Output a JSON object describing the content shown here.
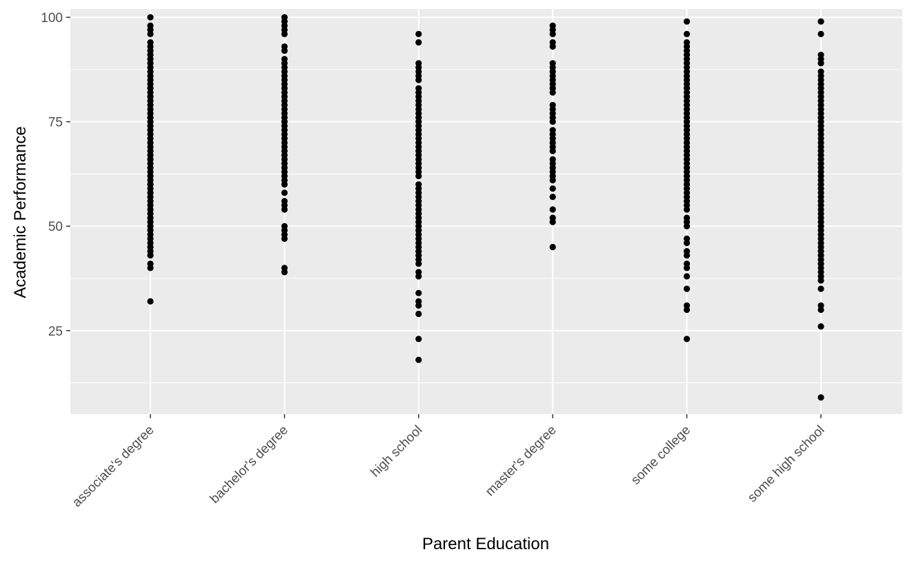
{
  "chart_data": {
    "type": "scatter",
    "title": "",
    "xlabel": "Parent Education",
    "ylabel": "Academic Performance",
    "categories": [
      "associate's degree",
      "bachelor's degree",
      "high school",
      "master's degree",
      "some college",
      "some high school"
    ],
    "y_ticks": [
      25,
      50,
      75,
      100
    ],
    "y_minor_ticks": [
      12.5,
      37.5,
      62.5,
      87.5
    ],
    "ylim": [
      5,
      102
    ],
    "grid": true,
    "colors": {
      "panel": "#EBEBEB",
      "grid": "#FFFFFF",
      "point": "#000000",
      "tick_text": "#4D4D4D",
      "title_text": "#000000"
    },
    "series": [
      {
        "category": "associate's degree",
        "values": [
          32,
          40,
          41,
          43,
          44,
          45,
          46,
          47,
          48,
          49,
          50,
          51,
          52,
          53,
          54,
          55,
          56,
          57,
          58,
          59,
          60,
          61,
          62,
          63,
          64,
          65,
          66,
          67,
          68,
          69,
          70,
          71,
          72,
          73,
          74,
          75,
          76,
          77,
          78,
          79,
          80,
          81,
          82,
          83,
          84,
          85,
          86,
          87,
          88,
          89,
          90,
          91,
          92,
          93,
          94,
          96,
          97,
          98,
          100
        ]
      },
      {
        "category": "bachelor's degree",
        "values": [
          39,
          40,
          47,
          48,
          49,
          50,
          54,
          55,
          56,
          58,
          60,
          61,
          62,
          63,
          64,
          65,
          66,
          67,
          68,
          69,
          70,
          71,
          72,
          73,
          74,
          75,
          76,
          77,
          78,
          79,
          80,
          81,
          82,
          83,
          84,
          85,
          86,
          87,
          88,
          89,
          90,
          92,
          93,
          96,
          97,
          98,
          99,
          100
        ]
      },
      {
        "category": "high school",
        "values": [
          18,
          23,
          29,
          31,
          32,
          34,
          38,
          39,
          41,
          42,
          43,
          44,
          45,
          46,
          47,
          48,
          49,
          50,
          51,
          52,
          53,
          54,
          55,
          56,
          57,
          58,
          59,
          60,
          62,
          63,
          64,
          65,
          66,
          67,
          68,
          69,
          70,
          71,
          72,
          73,
          74,
          75,
          76,
          77,
          78,
          79,
          80,
          81,
          82,
          83,
          85,
          86,
          87,
          88,
          89,
          94,
          96
        ]
      },
      {
        "category": "master's degree",
        "values": [
          45,
          51,
          52,
          54,
          57,
          59,
          61,
          62,
          63,
          64,
          65,
          66,
          68,
          69,
          70,
          71,
          72,
          73,
          75,
          76,
          77,
          78,
          79,
          82,
          83,
          84,
          85,
          86,
          87,
          88,
          89,
          93,
          94,
          96,
          97,
          98
        ]
      },
      {
        "category": "some college",
        "values": [
          23,
          30,
          31,
          35,
          38,
          40,
          41,
          43,
          44,
          46,
          47,
          50,
          51,
          52,
          54,
          55,
          56,
          57,
          58,
          59,
          60,
          61,
          62,
          63,
          64,
          65,
          66,
          67,
          68,
          69,
          70,
          71,
          72,
          73,
          74,
          75,
          76,
          77,
          78,
          79,
          80,
          81,
          82,
          83,
          84,
          85,
          86,
          87,
          88,
          89,
          90,
          91,
          92,
          93,
          94,
          96,
          99
        ]
      },
      {
        "category": "some high school",
        "values": [
          9,
          26,
          30,
          31,
          35,
          37,
          38,
          39,
          40,
          41,
          42,
          43,
          44,
          45,
          46,
          47,
          48,
          49,
          50,
          51,
          52,
          53,
          54,
          55,
          56,
          57,
          58,
          59,
          60,
          61,
          62,
          63,
          64,
          65,
          66,
          67,
          68,
          69,
          70,
          71,
          72,
          73,
          74,
          75,
          76,
          77,
          78,
          79,
          80,
          81,
          82,
          83,
          84,
          85,
          86,
          87,
          89,
          90,
          91,
          96,
          99
        ]
      }
    ]
  }
}
